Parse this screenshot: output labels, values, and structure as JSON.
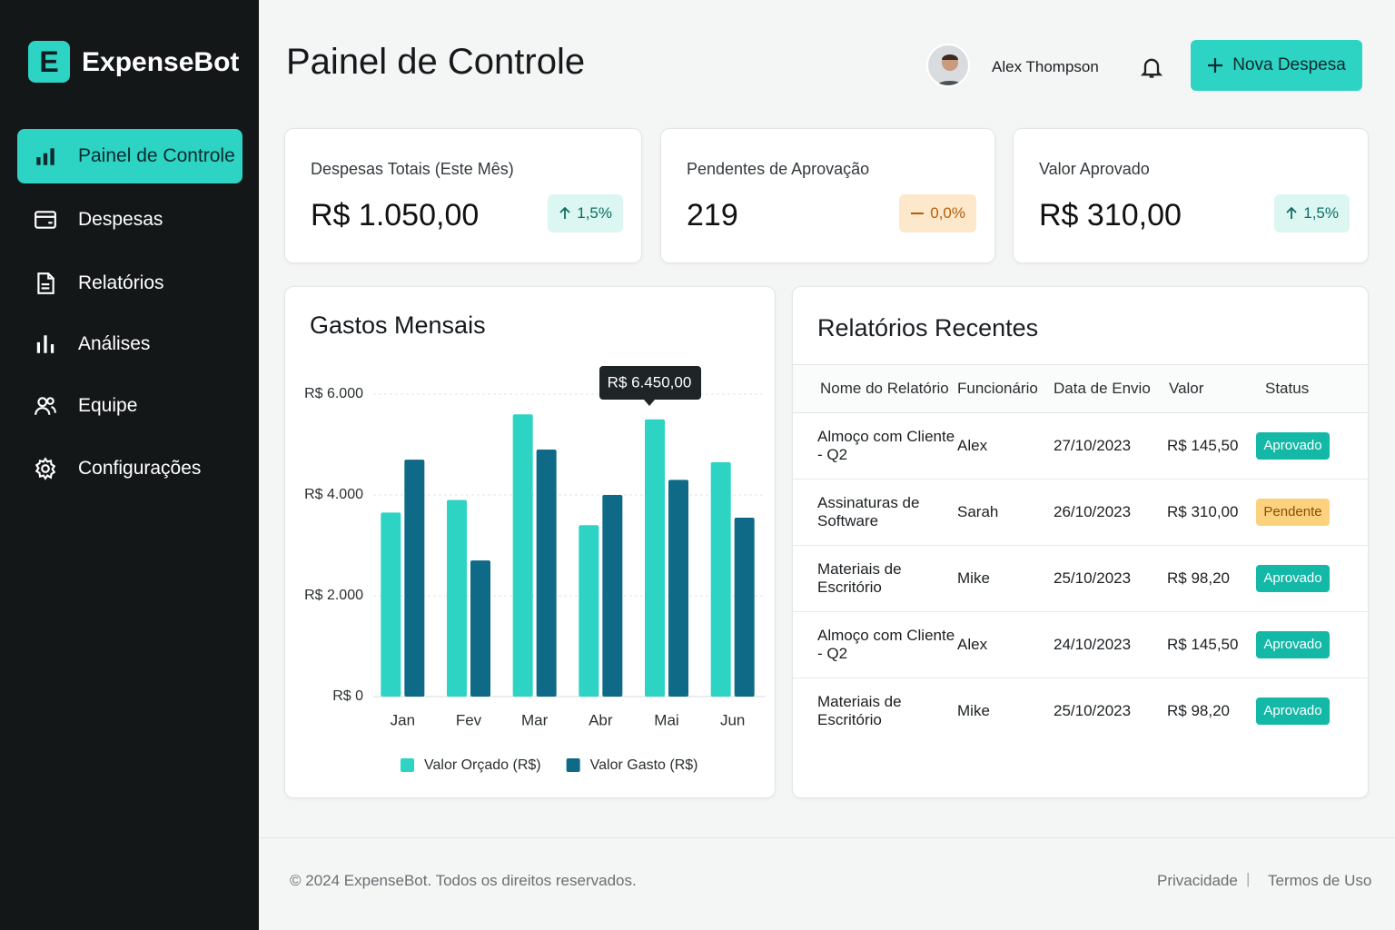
{
  "sidebar": {
    "logo": "E",
    "brand": "ExpenseBot",
    "nav": [
      "Painel de Controle",
      "Despesas",
      "Relatórios",
      "Análises",
      "Equipe",
      "Configurações"
    ]
  },
  "header": {
    "title": "Painel de Controle",
    "user": "Alex Thompson",
    "button": "Nova Despesa"
  },
  "stats": [
    {
      "label": "Despesas Totais (Este Mês)",
      "value": "R$ 1.050,00",
      "change": "1,5%"
    },
    {
      "label": "Pendentes de Aprovação",
      "value": "219",
      "change": "0,0%"
    },
    {
      "label": "Valor Aprovado",
      "value": "R$ 310,00",
      "change": "1,5%"
    }
  ],
  "chart_data": {
    "type": "bar",
    "title": "Gastos Mensais",
    "categories": [
      "Jan",
      "Fev",
      "Mar",
      "Abr",
      "Mai",
      "Jun"
    ],
    "series": [
      {
        "name": "Valor Orçado (R$)",
        "color": "#2dd4c4",
        "values": [
          3650,
          3900,
          5600,
          3400,
          5500,
          4650
        ]
      },
      {
        "name": "Valor Gasto (R$)",
        "color": "#0e6a87",
        "values": [
          4700,
          2700,
          4900,
          4000,
          4300,
          3550
        ]
      }
    ],
    "ylim": [
      0,
      6000
    ],
    "yticks": [
      {
        "value": 0,
        "label": "R$ 0"
      },
      {
        "value": 2000,
        "label": "R$ 2.000"
      },
      {
        "value": 4000,
        "label": "R$ 4.000"
      },
      {
        "value": 6000,
        "label": "R$ 6.000"
      }
    ],
    "grid": true,
    "annotation": "R$ 6.450,00",
    "legend": "bottom"
  },
  "table": {
    "title": "Relatórios Recentes",
    "columns": [
      "Nome do Relatório",
      "Funcionário",
      "Data de Envio",
      "Valor",
      "Status"
    ],
    "rows": [
      [
        "Almoço com Cliente - Q2",
        "Alex",
        "27/10/2023",
        "R$ 145,50",
        "Aprovado"
      ],
      [
        "Assinaturas de Software",
        "Sarah",
        "26/10/2023",
        "R$ 310,00",
        "Pendente"
      ],
      [
        "Materiais de Escritório",
        "Mike",
        "25/10/2023",
        "R$ 98,20",
        "Aprovado"
      ],
      [
        "Almoço com Cliente - Q2",
        "Alex",
        "24/10/2023",
        "R$ 145,50",
        "Aprovado"
      ],
      [
        "Materiais de Escritório",
        "Mike",
        "25/10/2023",
        "R$ 98,20",
        "Aprovado"
      ]
    ]
  },
  "footer": {
    "copyright": "© 2024 ExpenseBot. Todos os direitos reservados.",
    "links": [
      "Privacidade",
      "Termos de Uso"
    ]
  }
}
